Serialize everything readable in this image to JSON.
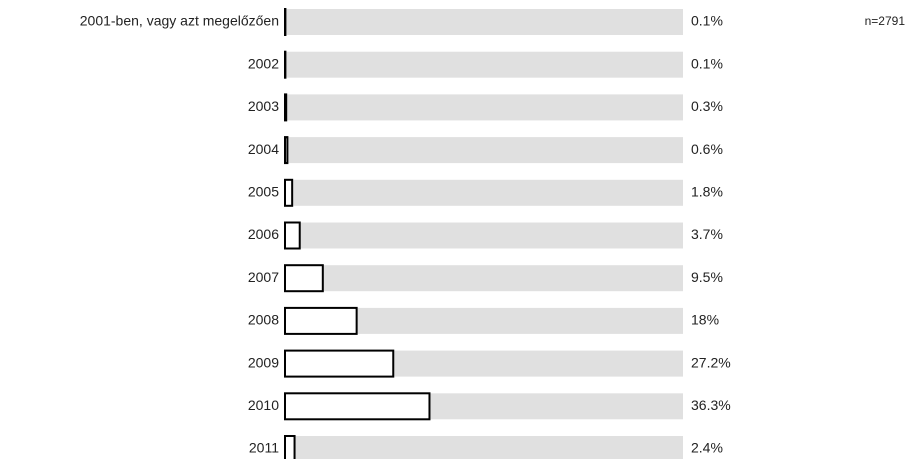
{
  "chart_data": {
    "type": "bar",
    "orientation": "horizontal",
    "categories": [
      "2001-ben, vagy azt megelőzően",
      "2002",
      "2003",
      "2004",
      "2005",
      "2006",
      "2007",
      "2008",
      "2009",
      "2010",
      "2011"
    ],
    "values": [
      0.1,
      0.1,
      0.3,
      0.6,
      1.8,
      3.7,
      9.5,
      18,
      27.2,
      36.3,
      2.4
    ],
    "value_labels": [
      "0.1%",
      "0.1%",
      "0.3%",
      "0.6%",
      "1.8%",
      "3.7%",
      "9.5%",
      "18%",
      "27.2%",
      "36.3%",
      "2.4%"
    ],
    "xlim": [
      0,
      100
    ],
    "color": "#ffffff",
    "edge_color": "#000000",
    "track_color": "#e0e0e0",
    "annotation": "n=2791"
  }
}
